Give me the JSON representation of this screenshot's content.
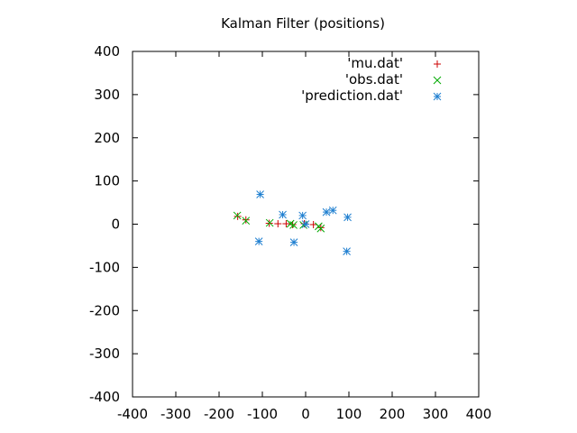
{
  "chart_data": {
    "type": "scatter",
    "title": "Kalman Filter (positions)",
    "xlabel": "",
    "ylabel": "",
    "xlim": [
      -400,
      400
    ],
    "ylim": [
      -400,
      400
    ],
    "x_ticks": [
      -400,
      -300,
      -200,
      -100,
      0,
      100,
      200,
      300,
      400
    ],
    "y_ticks": [
      -400,
      -300,
      -200,
      -100,
      0,
      100,
      200,
      300,
      400
    ],
    "grid": false,
    "legend_position": "top-right",
    "series": [
      {
        "name": "'mu.dat'",
        "marker": "plus",
        "color": "#cc0000",
        "points": [
          [
            -157,
            18
          ],
          [
            -138,
            10
          ],
          [
            -84,
            2
          ],
          [
            -64,
            1
          ],
          [
            -45,
            1
          ],
          [
            -30,
            -1
          ],
          [
            -3,
            1
          ],
          [
            18,
            -1
          ],
          [
            35,
            -8
          ]
        ]
      },
      {
        "name": "'obs.dat'",
        "marker": "cross",
        "color": "#00aa00",
        "points": [
          [
            -158,
            20
          ],
          [
            -138,
            8
          ],
          [
            -83,
            3
          ],
          [
            -35,
            1
          ],
          [
            -28,
            -2
          ],
          [
            -5,
            -2
          ],
          [
            30,
            -5
          ],
          [
            35,
            -10
          ]
        ]
      },
      {
        "name": "'prediction.dat'",
        "marker": "star",
        "color": "#1f7fd0",
        "points": [
          [
            -105,
            69
          ],
          [
            -108,
            -40
          ],
          [
            -53,
            22
          ],
          [
            -27,
            -42
          ],
          [
            -7,
            20
          ],
          [
            0,
            0
          ],
          [
            48,
            28
          ],
          [
            63,
            32
          ],
          [
            97,
            16
          ],
          [
            95,
            -63
          ]
        ]
      }
    ]
  }
}
